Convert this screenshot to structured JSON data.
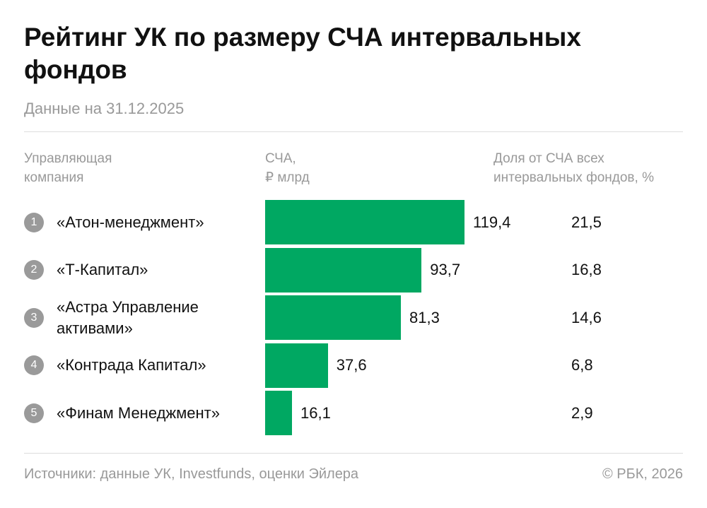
{
  "chart_data": {
    "type": "bar",
    "title": "Рейтинг УК по размеру СЧА интервальных фондов",
    "subtitle": "Данные на 31.12.2025",
    "category_header": "Управляющая\nкомпания",
    "ranks": [
      1,
      2,
      3,
      4,
      5
    ],
    "categories": [
      "«Атон-менеджмент»",
      "«Т-Капитал»",
      "«Астра Управление\nактивами»",
      "«Контрада Капитал»",
      "«Финам Менеджмент»"
    ],
    "series": [
      {
        "name": "СЧА,\n₽ млрд",
        "color": "#00a862",
        "values": [
          119.4,
          93.7,
          81.3,
          37.6,
          16.1
        ],
        "value_labels": [
          "119,4",
          "93,7",
          "81,3",
          "37,6",
          "16,1"
        ]
      },
      {
        "name": "Доля от СЧА всех\nинтервальных фондов, %",
        "values": [
          21.5,
          16.8,
          14.6,
          6.8,
          2.9
        ],
        "value_labels": [
          "21,5",
          "16,8",
          "14,6",
          "6,8",
          "2,9"
        ]
      }
    ],
    "source": "Источники: данные УК, Investfunds, оценки Эйлера",
    "credit": "© РБК, 2026"
  }
}
